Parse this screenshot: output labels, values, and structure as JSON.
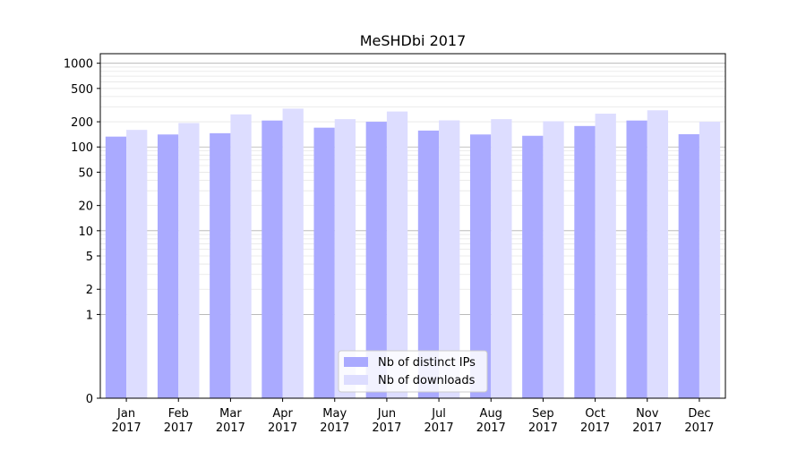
{
  "chart_data": {
    "type": "bar",
    "title": "MeSHDbi 2017",
    "xlabel": "",
    "ylabel": "",
    "yscale": "symlog",
    "ylim": [
      0,
      1300
    ],
    "yticks": [
      0,
      1,
      2,
      5,
      10,
      20,
      50,
      100,
      200,
      500,
      1000
    ],
    "grid": true,
    "legend_position": "bottom-center",
    "categories": [
      [
        "Jan",
        "2017"
      ],
      [
        "Feb",
        "2017"
      ],
      [
        "Mar",
        "2017"
      ],
      [
        "Apr",
        "2017"
      ],
      [
        "May",
        "2017"
      ],
      [
        "Jun",
        "2017"
      ],
      [
        "Jul",
        "2017"
      ],
      [
        "Aug",
        "2017"
      ],
      [
        "Sep",
        "2017"
      ],
      [
        "Oct",
        "2017"
      ],
      [
        "Nov",
        "2017"
      ],
      [
        "Dec",
        "2017"
      ]
    ],
    "series": [
      {
        "name": "Nb of distinct IPs",
        "color": "#aaaaff",
        "values": [
          133,
          141,
          146,
          207,
          170,
          200,
          157,
          141,
          136,
          178,
          207,
          142
        ]
      },
      {
        "name": "Nb of downloads",
        "color": "#ddddff",
        "values": [
          160,
          193,
          245,
          287,
          215,
          265,
          208,
          215,
          203,
          250,
          274,
          200
        ]
      }
    ]
  }
}
